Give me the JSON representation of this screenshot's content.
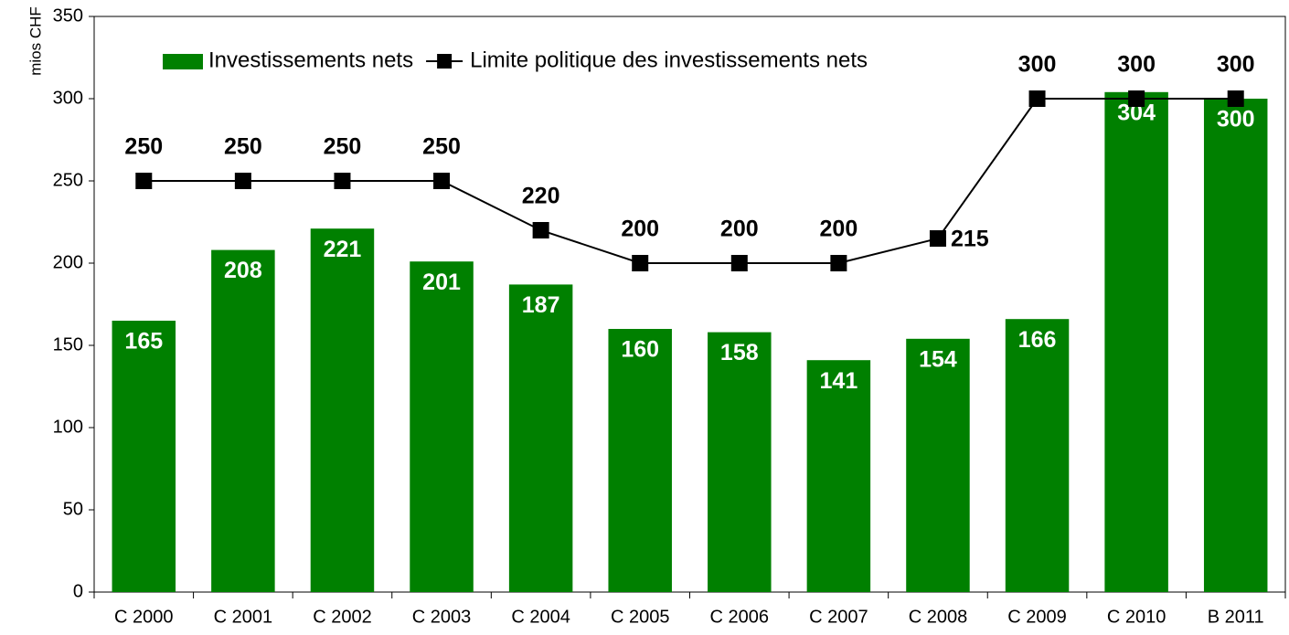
{
  "chart_data": {
    "type": "bar_line",
    "y_label": "mios CHF",
    "categories": [
      "C 2000",
      "C 2001",
      "C 2002",
      "C 2003",
      "C 2004",
      "C 2005",
      "C 2006",
      "C 2007",
      "C 2008",
      "C 2009",
      "C 2010",
      "B 2011"
    ],
    "series": [
      {
        "name": "Investissements nets",
        "type": "bar",
        "color": "#008000",
        "values": [
          165,
          208,
          221,
          201,
          187,
          160,
          158,
          141,
          154,
          166,
          304,
          300
        ]
      },
      {
        "name": "Limite politique des investissements nets",
        "type": "line",
        "color": "#000000",
        "values": [
          250,
          250,
          250,
          250,
          220,
          200,
          200,
          200,
          215,
          300,
          300,
          300
        ]
      }
    ],
    "ylim": [
      0,
      350
    ],
    "yticks": [
      0,
      50,
      100,
      150,
      200,
      250,
      300,
      350
    ],
    "grid": false,
    "legend": "top-left"
  }
}
